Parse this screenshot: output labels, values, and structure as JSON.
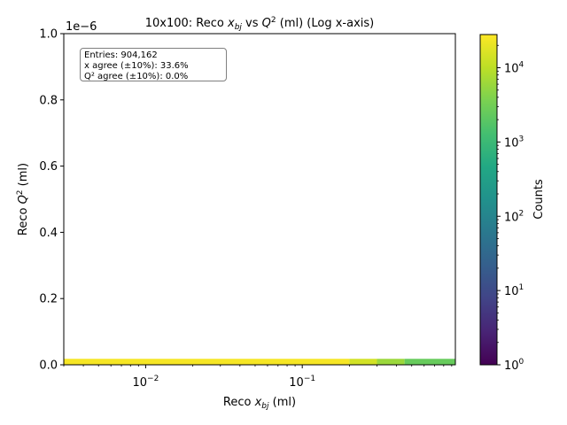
{
  "chart_data": {
    "type": "heatmap",
    "title": {
      "pre": "10x100: Reco ",
      "x_sym": "x",
      "x_sub": "bj",
      "mid": " vs ",
      "q_sym": "Q",
      "q_sup": "2",
      "post": " (ml) (Log x-axis)"
    },
    "xlabel": {
      "pre": "Reco ",
      "sym": "x",
      "sub": "bj",
      "post": " (ml)"
    },
    "ylabel": {
      "pre": "Reco ",
      "sym": "Q",
      "sup": "2",
      "post": " (ml)"
    },
    "x_scale": "log",
    "xlim": [
      0.003,
      0.95
    ],
    "x_ticks": [
      {
        "value": 0.01,
        "base": "10",
        "exp": "−2"
      },
      {
        "value": 0.1,
        "base": "10",
        "exp": "−1"
      }
    ],
    "ylim": [
      0,
      1.0
    ],
    "y_offset_label": "1e−6",
    "y_ticks": [
      "0.0",
      "0.2",
      "0.4",
      "0.6",
      "0.8",
      "1.0"
    ],
    "colorbar": {
      "label": "Counts",
      "scale": "log",
      "range": [
        1,
        28000
      ],
      "cmap": "viridis",
      "ticks": [
        {
          "value": 1,
          "base": "10",
          "exp": "0"
        },
        {
          "value": 10,
          "base": "10",
          "exp": "1"
        },
        {
          "value": 100,
          "base": "10",
          "exp": "2"
        },
        {
          "value": 1000,
          "base": "10",
          "exp": "3"
        },
        {
          "value": 10000,
          "base": "10",
          "exp": "4"
        }
      ]
    },
    "cells": [
      {
        "x0": 0.003,
        "x1": 0.2,
        "y0": 0,
        "y1": 0.01,
        "count": 25000
      },
      {
        "x0": 0.2,
        "x1": 0.3,
        "y0": 0,
        "y1": 0.01,
        "count": 14000
      },
      {
        "x0": 0.3,
        "x1": 0.45,
        "y0": 0,
        "y1": 0.01,
        "count": 6000
      },
      {
        "x0": 0.45,
        "x1": 0.95,
        "y0": 0,
        "y1": 0.01,
        "count": 2500
      }
    ],
    "stats_box": {
      "location": "upper-left",
      "lines": [
        "Entries: 904,162",
        "x agree (±10%): 33.6%",
        "Q² agree (±10%): 0.0%"
      ]
    }
  }
}
